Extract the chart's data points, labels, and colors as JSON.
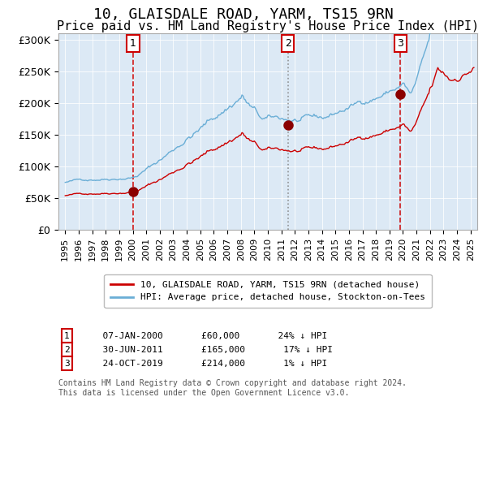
{
  "title": "10, GLAISDALE ROAD, YARM, TS15 9RN",
  "subtitle": "Price paid vs. HM Land Registry's House Price Index (HPI)",
  "title_fontsize": 13,
  "subtitle_fontsize": 11,
  "background_color": "#dce9f5",
  "plot_bg_color": "#dce9f5",
  "hpi_color": "#6aaed6",
  "price_color": "#cc0000",
  "ylabel_color": "#000000",
  "vline1_x": 2000.02,
  "vline2_x": 2011.49,
  "vline3_x": 2019.81,
  "sale1": {
    "date": "07-JAN-2000",
    "year": 2000.02,
    "price": 60000,
    "label": "24% ↓ HPI"
  },
  "sale2": {
    "date": "30-JUN-2011",
    "year": 2011.49,
    "price": 165000,
    "label": "17% ↓ HPI"
  },
  "sale3": {
    "date": "24-OCT-2019",
    "year": 2019.81,
    "price": 214000,
    "label": "1% ↓ HPI"
  },
  "legend_line1": "10, GLAISDALE ROAD, YARM, TS15 9RN (detached house)",
  "legend_line2": "HPI: Average price, detached house, Stockton-on-Tees",
  "footnote": "Contains HM Land Registry data © Crown copyright and database right 2024.\nThis data is licensed under the Open Government Licence v3.0.",
  "ylim": [
    0,
    310000
  ],
  "xlim": [
    1994.5,
    2025.5
  ],
  "yticks": [
    0,
    50000,
    100000,
    150000,
    200000,
    250000,
    300000
  ],
  "ytick_labels": [
    "£0",
    "£50K",
    "£100K",
    "£150K",
    "£200K",
    "£250K",
    "£300K"
  ]
}
